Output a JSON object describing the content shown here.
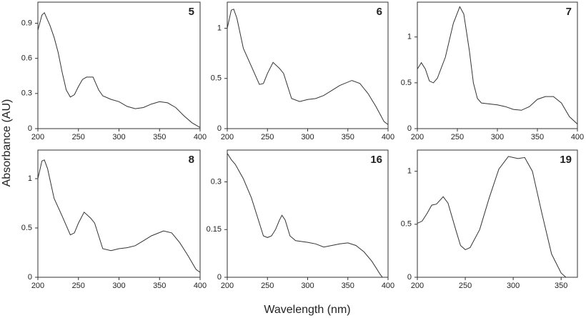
{
  "xlabel": "Wavelength (nm)",
  "ylabel": "Absorbance (AU)",
  "chart_data": [
    {
      "type": "line",
      "title": "5",
      "color": "#333333",
      "x": [
        200,
        205,
        208,
        215,
        220,
        225,
        230,
        235,
        240,
        245,
        250,
        255,
        260,
        268,
        275,
        280,
        290,
        300,
        310,
        320,
        330,
        340,
        350,
        360,
        370,
        380,
        390,
        400
      ],
      "values": [
        0.84,
        0.97,
        0.99,
        0.88,
        0.78,
        0.65,
        0.48,
        0.33,
        0.27,
        0.29,
        0.36,
        0.42,
        0.44,
        0.44,
        0.33,
        0.28,
        0.25,
        0.23,
        0.19,
        0.17,
        0.18,
        0.21,
        0.23,
        0.22,
        0.18,
        0.11,
        0.05,
        0.01
      ],
      "xlim": [
        200,
        400
      ],
      "xticks": [
        200,
        250,
        300,
        350,
        400
      ],
      "ylim": [
        0,
        1.08
      ],
      "yticks": [
        0,
        0.3,
        0.6,
        0.9
      ]
    },
    {
      "type": "line",
      "title": "6",
      "color": "#333333",
      "x": [
        200,
        205,
        208,
        212,
        220,
        230,
        240,
        245,
        250,
        257,
        265,
        270,
        280,
        290,
        300,
        310,
        320,
        330,
        340,
        355,
        365,
        375,
        385,
        395,
        400
      ],
      "values": [
        1.0,
        1.18,
        1.19,
        1.1,
        0.8,
        0.62,
        0.44,
        0.45,
        0.55,
        0.66,
        0.6,
        0.55,
        0.3,
        0.27,
        0.29,
        0.3,
        0.33,
        0.38,
        0.43,
        0.48,
        0.45,
        0.35,
        0.22,
        0.07,
        0.04
      ],
      "xlim": [
        200,
        400
      ],
      "xticks": [
        200,
        250,
        300,
        350,
        400
      ],
      "ylim": [
        0,
        1.26
      ],
      "yticks": [
        0,
        0.5,
        1
      ]
    },
    {
      "type": "line",
      "title": "7",
      "color": "#333333",
      "x": [
        200,
        205,
        210,
        215,
        220,
        225,
        235,
        245,
        253,
        258,
        265,
        270,
        275,
        280,
        300,
        310,
        320,
        330,
        340,
        350,
        360,
        370,
        380,
        390,
        400
      ],
      "values": [
        0.65,
        0.72,
        0.65,
        0.52,
        0.5,
        0.55,
        0.78,
        1.15,
        1.33,
        1.25,
        0.85,
        0.5,
        0.33,
        0.28,
        0.26,
        0.24,
        0.21,
        0.2,
        0.24,
        0.32,
        0.35,
        0.35,
        0.28,
        0.13,
        0.05
      ],
      "xlim": [
        200,
        400
      ],
      "xticks": [
        200,
        250,
        300,
        350,
        400
      ],
      "ylim": [
        0,
        1.38
      ],
      "yticks": [
        0,
        0.5,
        1
      ]
    },
    {
      "type": "line",
      "title": "8",
      "color": "#333333",
      "x": [
        200,
        205,
        208,
        212,
        220,
        230,
        240,
        245,
        250,
        257,
        265,
        270,
        280,
        290,
        300,
        310,
        320,
        330,
        340,
        355,
        365,
        375,
        385,
        395,
        400
      ],
      "values": [
        1.0,
        1.18,
        1.19,
        1.1,
        0.8,
        0.62,
        0.43,
        0.45,
        0.55,
        0.66,
        0.6,
        0.55,
        0.29,
        0.27,
        0.29,
        0.3,
        0.32,
        0.37,
        0.42,
        0.47,
        0.45,
        0.35,
        0.22,
        0.08,
        0.05
      ],
      "xlim": [
        200,
        400
      ],
      "xticks": [
        200,
        250,
        300,
        350,
        400
      ],
      "ylim": [
        0,
        1.29
      ],
      "yticks": [
        0,
        0.5,
        1
      ]
    },
    {
      "type": "line",
      "title": "16",
      "color": "#333333",
      "x": [
        200,
        205,
        210,
        220,
        230,
        240,
        245,
        250,
        255,
        260,
        265,
        268,
        272,
        278,
        285,
        300,
        310,
        320,
        330,
        340,
        350,
        360,
        370,
        380,
        390,
        393
      ],
      "values": [
        0.39,
        0.37,
        0.355,
        0.31,
        0.25,
        0.17,
        0.13,
        0.125,
        0.13,
        0.15,
        0.18,
        0.195,
        0.18,
        0.13,
        0.115,
        0.11,
        0.105,
        0.095,
        0.1,
        0.105,
        0.108,
        0.1,
        0.08,
        0.05,
        0.01,
        0
      ],
      "xlim": [
        200,
        400
      ],
      "xticks": [
        200,
        250,
        300,
        350,
        400
      ],
      "ylim": [
        0,
        0.4
      ],
      "yticks": [
        0,
        0.15,
        0.3
      ]
    },
    {
      "type": "line",
      "title": "19",
      "color": "#333333",
      "x": [
        200,
        205,
        210,
        215,
        220,
        227,
        232,
        240,
        245,
        250,
        255,
        265,
        275,
        285,
        295,
        305,
        312,
        320,
        330,
        340,
        350,
        355
      ],
      "values": [
        0.51,
        0.53,
        0.6,
        0.68,
        0.69,
        0.76,
        0.7,
        0.45,
        0.3,
        0.26,
        0.28,
        0.45,
        0.75,
        1.02,
        1.14,
        1.12,
        1.13,
        1.0,
        0.6,
        0.22,
        0.04,
        0.0
      ],
      "xlim": [
        200,
        367
      ],
      "xticks": [
        200,
        250,
        300,
        350
      ],
      "ylim": [
        0,
        1.2
      ],
      "yticks": [
        0,
        0.5,
        1
      ]
    }
  ]
}
